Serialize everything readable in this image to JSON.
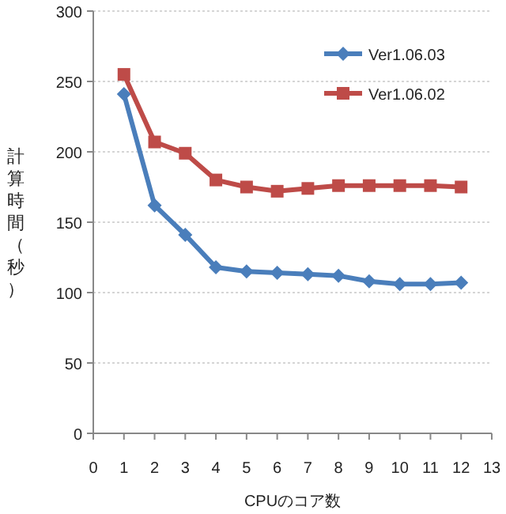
{
  "chart_data": {
    "type": "line",
    "xlabel": "CPUのコア数",
    "ylabel": "計算時間（秒）",
    "x": [
      1,
      2,
      3,
      4,
      5,
      6,
      7,
      8,
      9,
      10,
      11,
      12
    ],
    "series": [
      {
        "name": "Ver1.06.03",
        "color": "#4a7ebb",
        "marker": "diamond",
        "values": [
          241,
          162,
          141,
          118,
          115,
          114,
          113,
          112,
          108,
          106,
          106,
          107
        ]
      },
      {
        "name": "Ver1.06.02",
        "color": "#be4b48",
        "marker": "square",
        "values": [
          255,
          207,
          199,
          180,
          175,
          172,
          174,
          176,
          176,
          176,
          176,
          175
        ]
      }
    ],
    "xlim": [
      0,
      13
    ],
    "xticks": [
      0,
      1,
      2,
      3,
      4,
      5,
      6,
      7,
      8,
      9,
      10,
      11,
      12,
      13
    ],
    "ylim": [
      0,
      300
    ],
    "yticks": [
      0,
      50,
      100,
      150,
      200,
      250,
      300
    ],
    "grid": "y",
    "legend": "top right",
    "line_style": "solid"
  }
}
